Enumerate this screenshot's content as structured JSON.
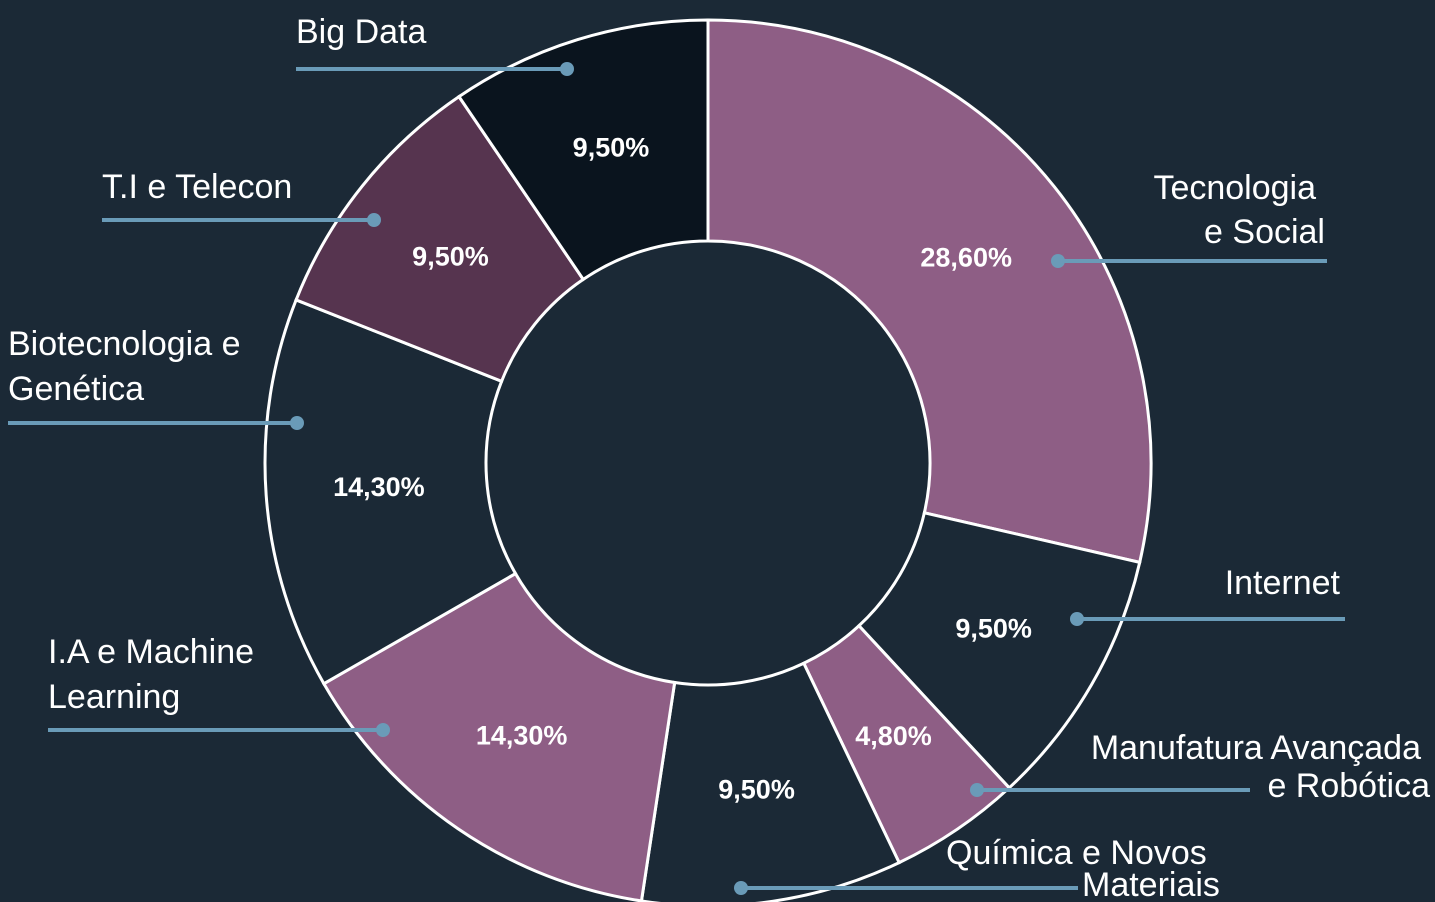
{
  "chart_data": {
    "type": "donut",
    "categories": [
      "Tecnologia\ne Social",
      "Internet",
      "Manufatura Avançada\ne Robótica",
      "Química e Novos\nMateriais",
      "I.A e Machine\nLearning",
      "Biotecnologia e\nGenética",
      "T.I e Telecon",
      "Big Data"
    ],
    "values": [
      28.6,
      9.5,
      4.8,
      9.5,
      14.3,
      14.3,
      9.5,
      9.5
    ],
    "value_labels": [
      "28,60%",
      "9,50%",
      "4,80%",
      "9,50%",
      "14,30%",
      "14,30%",
      "9,50%",
      "9,50%"
    ],
    "colors": [
      "#8e5e85",
      "#1b2936",
      "#8e5e85",
      "#1b2936",
      "#8e5e85",
      "#1b2936",
      "#56344f",
      "#0a141e"
    ]
  }
}
